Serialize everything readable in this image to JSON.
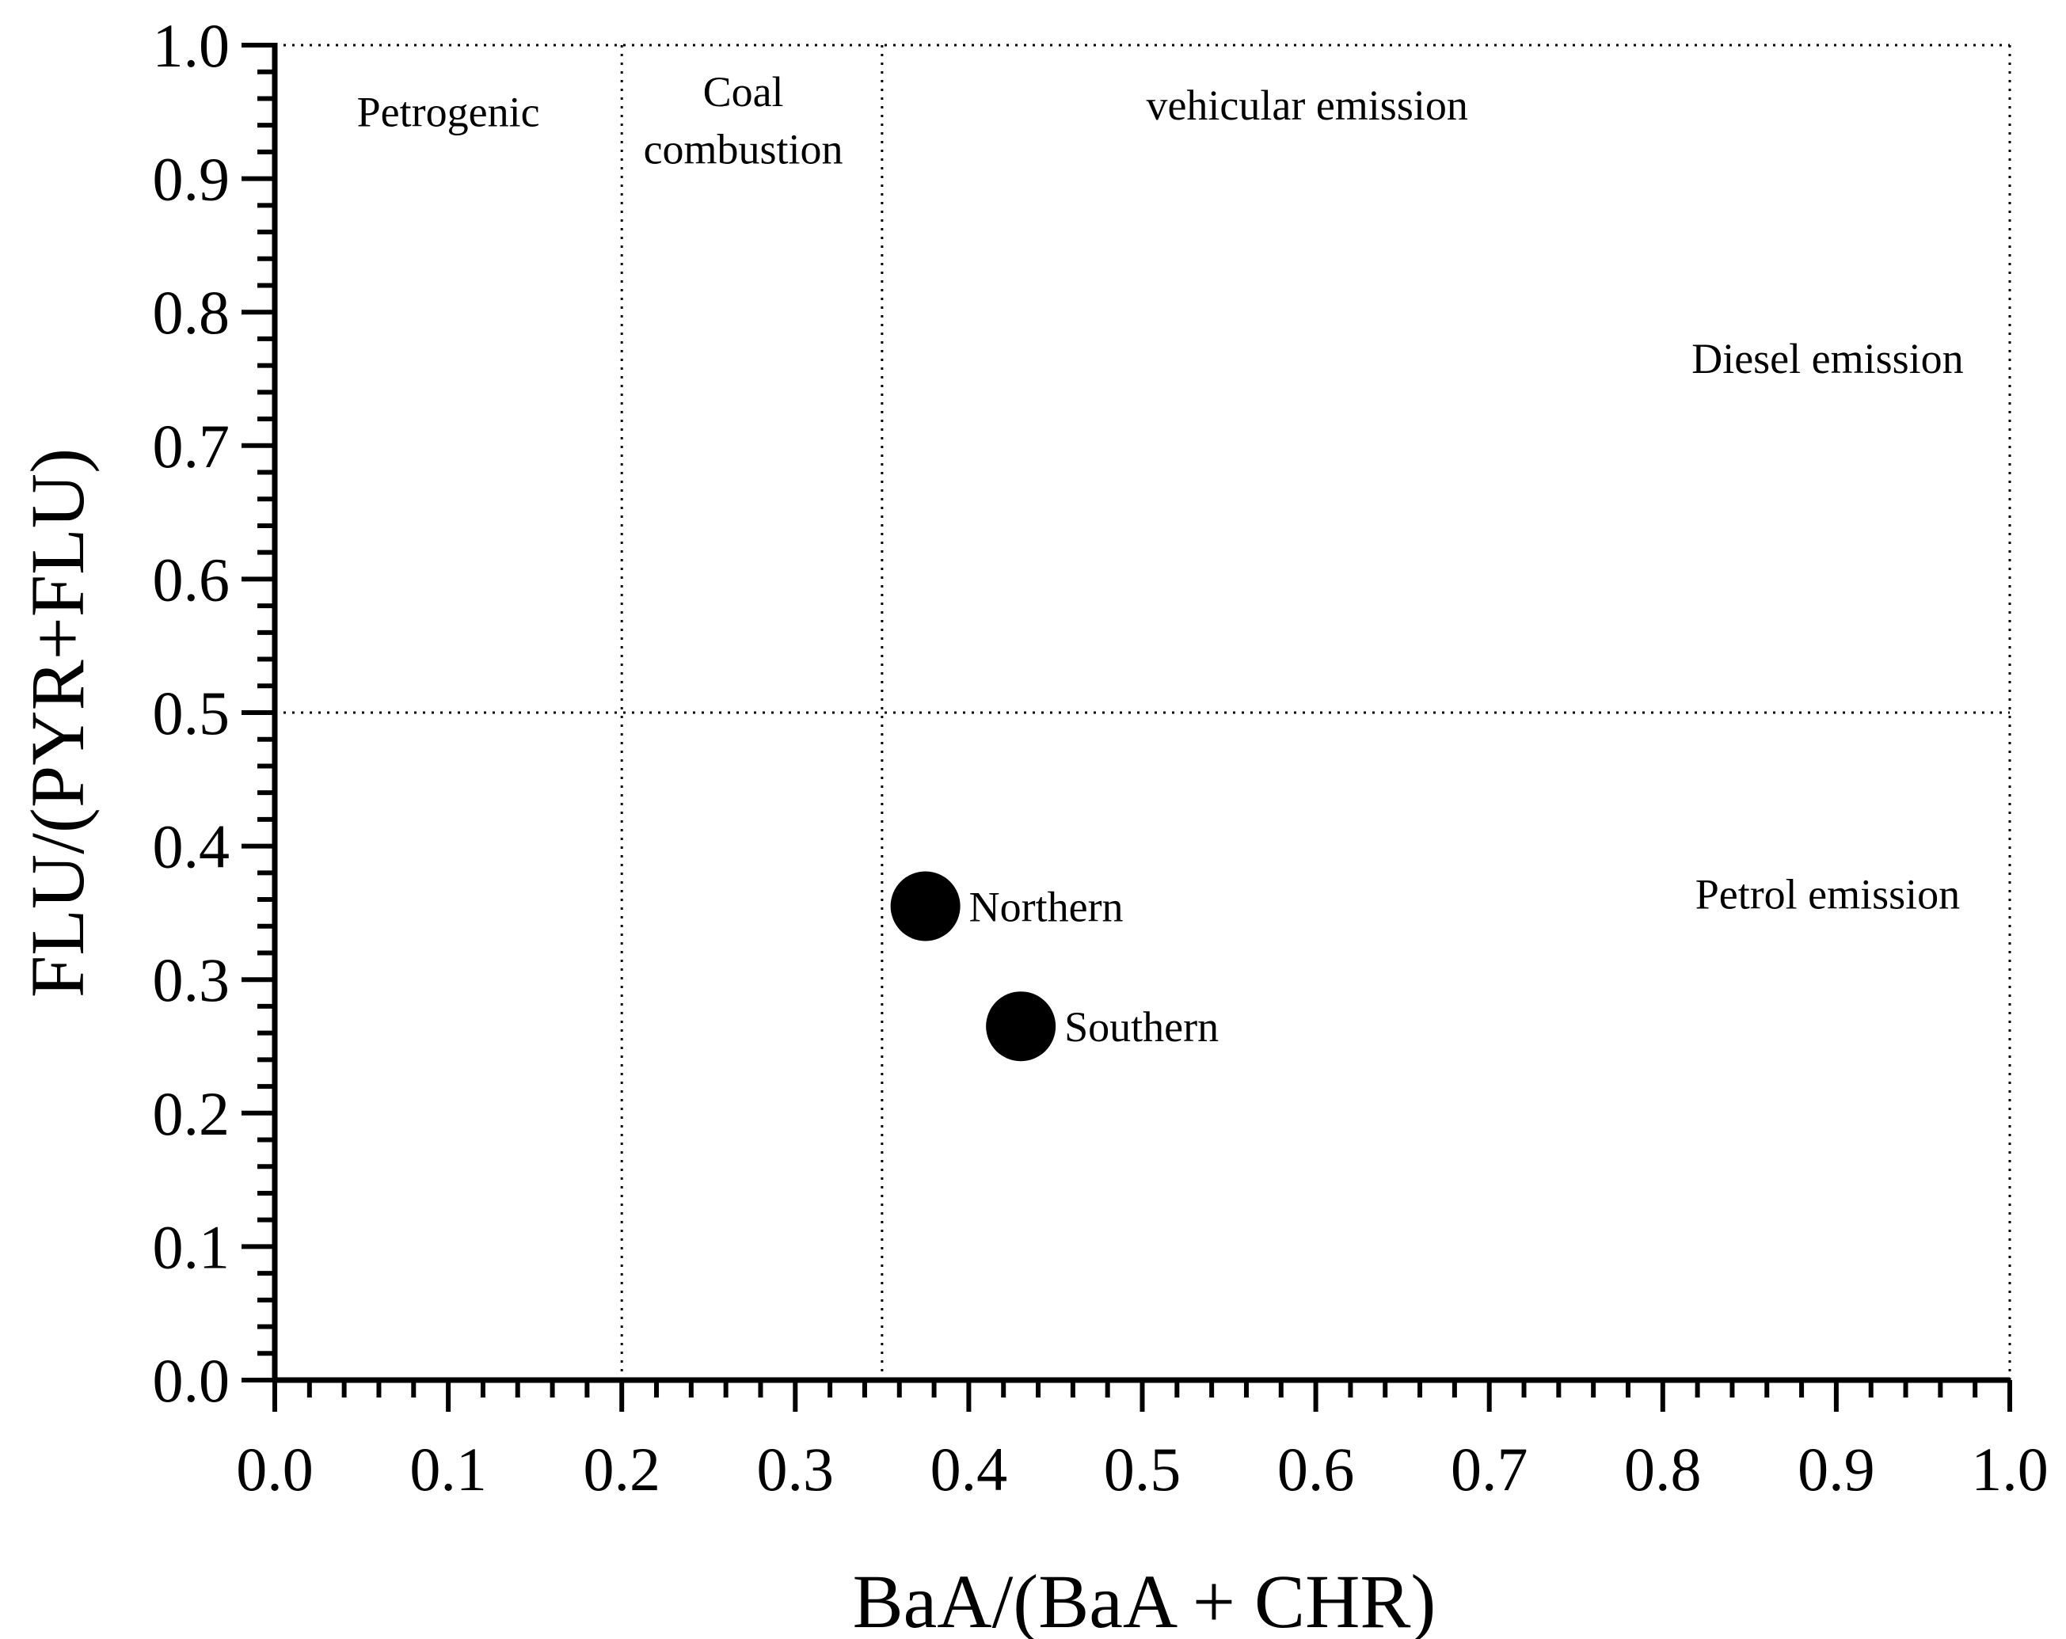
{
  "chart_data": {
    "type": "scatter",
    "xlabel": "BaA/(BaA + CHR)",
    "ylabel": "FLU/(PYR+FLU)",
    "xlim": [
      0.0,
      1.0
    ],
    "ylim": [
      0.0,
      1.0
    ],
    "x_ticks": [
      "0.0",
      "0.1",
      "0.2",
      "0.3",
      "0.4",
      "0.5",
      "0.6",
      "0.7",
      "0.8",
      "0.9",
      "1.0"
    ],
    "y_ticks": [
      "0.0",
      "0.1",
      "0.2",
      "0.3",
      "0.4",
      "0.5",
      "0.6",
      "0.7",
      "0.8",
      "0.9",
      "1.0"
    ],
    "grid": false,
    "reference_lines": {
      "vertical": [
        0.2,
        0.35,
        1.0
      ],
      "horizontal": [
        0.5,
        1.0
      ],
      "style": "dotted"
    },
    "points": [
      {
        "label": "Northern",
        "x": 0.375,
        "y": 0.355
      },
      {
        "label": "Southern",
        "x": 0.43,
        "y": 0.265
      }
    ],
    "annotations": [
      {
        "id": "petrogenic",
        "text": "Petrogenic",
        "x": 0.1,
        "y": 0.95
      },
      {
        "id": "coal-1",
        "text": "Coal",
        "x": 0.27,
        "y": 0.965
      },
      {
        "id": "coal-2",
        "text": "combustion",
        "x": 0.27,
        "y": 0.922
      },
      {
        "id": "vehicular",
        "text": "vehicular emission",
        "x": 0.595,
        "y": 0.955
      },
      {
        "id": "diesel",
        "text": "Diesel emission",
        "x": 0.895,
        "y": 0.765
      },
      {
        "id": "petrol",
        "text": "Petrol emission",
        "x": 0.895,
        "y": 0.364
      }
    ]
  }
}
